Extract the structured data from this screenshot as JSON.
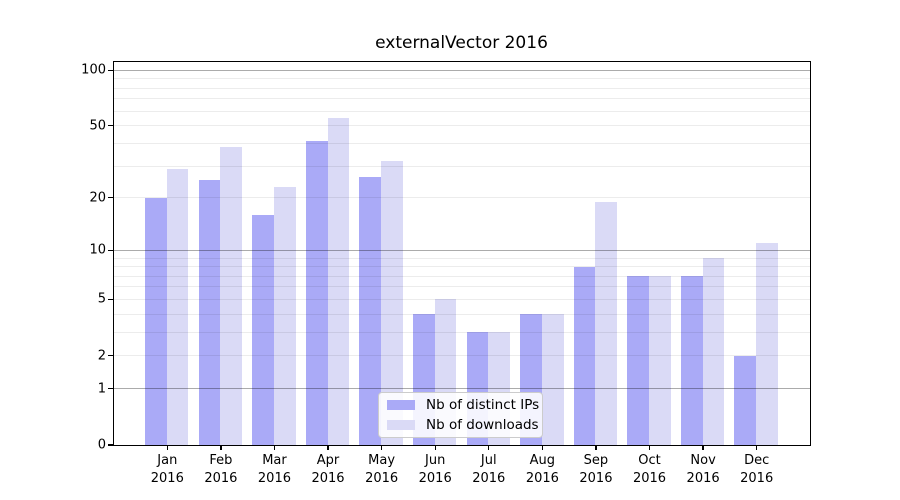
{
  "title": "externalVector 2016",
  "colors": {
    "distinct_ips": "#aaaaf7",
    "downloads": "#dadaf6",
    "major_gridline": "rgba(0,0,0,0.33)",
    "minor_gridline": "rgba(0,0,0,0.075)",
    "spine": "#000000",
    "legend_border": "#cccccc"
  },
  "legend": {
    "items": [
      {
        "key": "distinct_ips",
        "label": "Nb of distinct IPs"
      },
      {
        "key": "downloads",
        "label": "Nb of downloads"
      }
    ]
  },
  "chart_data": {
    "type": "bar",
    "title": "externalVector 2016",
    "categories": [
      "Jan 2016",
      "Feb 2016",
      "Mar 2016",
      "Apr 2016",
      "May 2016",
      "Jun 2016",
      "Jul 2016",
      "Aug 2016",
      "Sep 2016",
      "Oct 2016",
      "Nov 2016",
      "Dec 2016"
    ],
    "series": [
      {
        "name": "Nb of distinct IPs",
        "color_key": "distinct_ips",
        "values": [
          20,
          25,
          16,
          41,
          26,
          4,
          3,
          4,
          8,
          7,
          7,
          2
        ]
      },
      {
        "name": "Nb of downloads",
        "color_key": "downloads",
        "values": [
          29,
          38,
          23,
          55,
          32,
          5,
          3,
          4,
          19,
          7,
          9,
          11
        ]
      }
    ],
    "xlabel": "",
    "ylabel": "",
    "yscale": "log1p",
    "ylim": [
      0,
      112
    ],
    "y_ticks": [
      0,
      1,
      2,
      5,
      10,
      20,
      50,
      100
    ],
    "major_gridlines": [
      1,
      10,
      100
    ],
    "minor_gridlines": [
      2,
      3,
      4,
      5,
      6,
      7,
      8,
      9,
      20,
      30,
      40,
      50,
      60,
      70,
      80,
      90
    ],
    "grid": "on, drawn above bars",
    "legend_position": "lower center"
  }
}
